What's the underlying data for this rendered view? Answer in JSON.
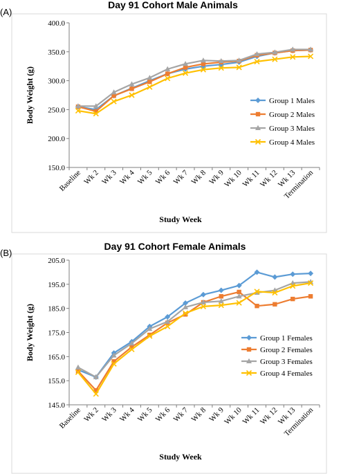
{
  "panels": [
    {
      "label": "(A)"
    },
    {
      "label": "(B)"
    }
  ],
  "chart_data": [
    {
      "type": "line",
      "title": "Day 91 Cohort Male Animals",
      "xlabel": "Study Week",
      "ylabel": "Body Weight (g)",
      "ylim": [
        150,
        400
      ],
      "yticks": [
        "150.0",
        "200.0",
        "250.0",
        "300.0",
        "350.0",
        "400.0"
      ],
      "grid": false,
      "legend_position": "right",
      "categories": [
        "Baseline",
        "Wk 2",
        "Wk 3",
        "Wk 4",
        "Wk 5",
        "Wk 6",
        "Wk 7",
        "Wk 8",
        "Wk 9",
        "Wk 10",
        "Wk 11",
        "Wk 12",
        "Wk 13",
        "Termination"
      ],
      "series": [
        {
          "name": "Group 1 Males",
          "color": "#5B9BD5",
          "marker": "diamond",
          "values": [
            255,
            250,
            274,
            287,
            300,
            312,
            320,
            325,
            328,
            332,
            342,
            348,
            352,
            353
          ]
        },
        {
          "name": "Group 2 Males",
          "color": "#ED7D31",
          "marker": "square",
          "values": [
            255,
            247,
            274,
            286,
            298,
            312,
            323,
            329,
            332,
            334,
            344,
            348,
            352,
            353
          ]
        },
        {
          "name": "Group 3 Males",
          "color": "#A5A5A5",
          "marker": "triangle",
          "values": [
            256,
            256,
            280,
            294,
            305,
            320,
            329,
            335,
            334,
            335,
            346,
            349,
            354,
            354
          ]
        },
        {
          "name": "Group 4 Males",
          "color": "#FFC000",
          "marker": "x",
          "values": [
            248,
            243,
            264,
            275,
            289,
            304,
            313,
            319,
            322,
            323,
            333,
            337,
            341,
            342
          ]
        }
      ]
    },
    {
      "type": "line",
      "title": "Day 91 Cohort Female Animals",
      "xlabel": "Study Week",
      "ylabel": "Body Weight (g)",
      "ylim": [
        145,
        205
      ],
      "yticks": [
        "145.0",
        "155.0",
        "165.0",
        "175.0",
        "185.0",
        "195.0",
        "205.0"
      ],
      "grid": false,
      "legend_position": "right",
      "categories": [
        "Baseline",
        "Wk 2",
        "Wk 3",
        "Wk 4",
        "Wk 5",
        "Wk 6",
        "Wk 7",
        "Wk 8",
        "Wk 9",
        "Wk 10",
        "Wk 11",
        "Wk 12",
        "Wk 13",
        "Termination"
      ],
      "series": [
        {
          "name": "Group 1 Females",
          "color": "#5B9BD5",
          "marker": "diamond",
          "values": [
            159.5,
            156.5,
            166.5,
            171.2,
            177.5,
            181.5,
            187.2,
            190.7,
            192.5,
            194.5,
            200,
            198,
            199.2,
            199.5
          ]
        },
        {
          "name": "Group 2 Females",
          "color": "#ED7D31",
          "marker": "square",
          "values": [
            159,
            151,
            163,
            169,
            174,
            179,
            182.5,
            187.5,
            190,
            191.8,
            186,
            186.7,
            188.9,
            190
          ]
        },
        {
          "name": "Group 3 Females",
          "color": "#A5A5A5",
          "marker": "triangle",
          "values": [
            160.5,
            156.5,
            165.5,
            170.5,
            176.5,
            179.5,
            185.5,
            187.5,
            188,
            190,
            191.5,
            192.5,
            195.5,
            196
          ]
        },
        {
          "name": "Group 4 Females",
          "color": "#FFC000",
          "marker": "x",
          "values": [
            158.5,
            149.5,
            162,
            168,
            173.5,
            177.5,
            183,
            185.8,
            186.3,
            187.3,
            192,
            191.5,
            194.3,
            195.5
          ]
        }
      ]
    }
  ]
}
